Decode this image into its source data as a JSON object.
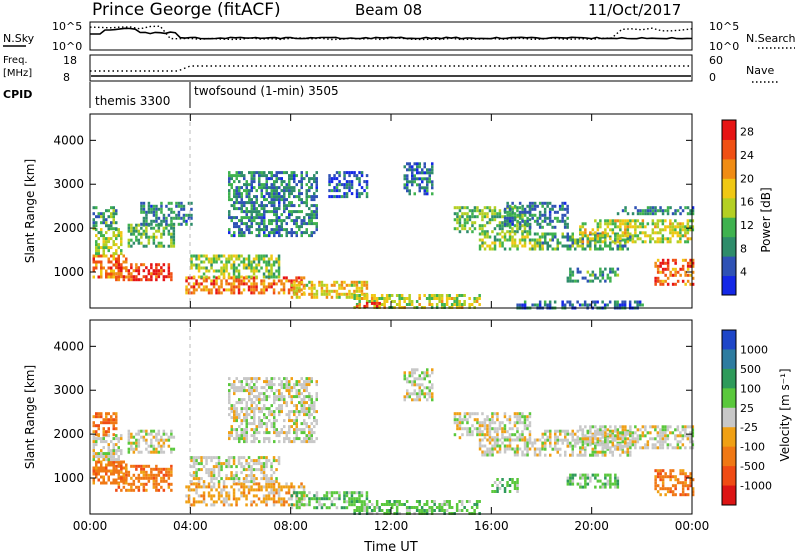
{
  "header": {
    "title": "Prince George (fitACF)",
    "beam": "Beam 08",
    "date": "11/Oct/2017"
  },
  "nsky_panel": {
    "left_label": "N.Sky",
    "right_label": "N.Search",
    "left_ticks": [
      "10^5",
      "10^0"
    ],
    "right_ticks": [
      "10^5",
      "10^0"
    ]
  },
  "freq_panel": {
    "left_label": "Freq.",
    "left_unit": "[MHz]",
    "right_label": "Nave",
    "left_ticks": [
      "18",
      "8"
    ],
    "right_ticks": [
      "60",
      "0"
    ]
  },
  "cpid_panel": {
    "label": "CPID",
    "segments": [
      {
        "name": "themis 3300",
        "start_h": 0.0
      },
      {
        "name": "twofsound (1-min) 3505",
        "start_h": 4.0
      }
    ]
  },
  "colors": {
    "power_scale": [
      "#1428e6",
      "#2f52b5",
      "#2e8c6a",
      "#3fb24f",
      "#b4cf23",
      "#f0c814",
      "#f08c14",
      "#f05014",
      "#e61414"
    ],
    "velocity_scale": [
      "#1e46c8",
      "#2e7ca0",
      "#2e9a5a",
      "#5ac83c",
      "#c8c8c8",
      "#f0a014",
      "#f07814",
      "#f04b14",
      "#dc1414"
    ]
  },
  "chart_data": [
    {
      "type": "heatmap",
      "name": "power",
      "ylabel": "Slant Range [km]",
      "xlabel": "",
      "x_ticks": [
        "00:00",
        "04:00",
        "08:00",
        "12:00",
        "16:00",
        "20:00",
        "00:00"
      ],
      "x_range_h": [
        0,
        24
      ],
      "y_ticks": [
        "1000",
        "2000",
        "3000",
        "4000"
      ],
      "ylim": [
        180,
        4600
      ],
      "colorbar": {
        "label": "Power [dB]",
        "ticks": [
          "4",
          "8",
          "12",
          "16",
          "20",
          "24",
          "28"
        ],
        "range": [
          0,
          30
        ]
      },
      "regions": [
        {
          "t0": 0.1,
          "t1": 1.4,
          "r0": 900,
          "r1": 1400,
          "v": 22
        },
        {
          "t0": 0.2,
          "t1": 1.2,
          "r0": 1400,
          "r1": 2000,
          "v": 14
        },
        {
          "t0": 0.1,
          "t1": 1.0,
          "r0": 2000,
          "r1": 2500,
          "v": 10
        },
        {
          "t0": 1.0,
          "t1": 3.2,
          "r0": 850,
          "r1": 1200,
          "v": 26
        },
        {
          "t0": 1.5,
          "t1": 3.3,
          "r0": 1600,
          "r1": 2100,
          "v": 12
        },
        {
          "t0": 2.0,
          "t1": 4.0,
          "r0": 2100,
          "r1": 2600,
          "v": 8
        },
        {
          "t0": 3.8,
          "t1": 8.5,
          "r0": 550,
          "r1": 900,
          "v": 24
        },
        {
          "t0": 4.0,
          "t1": 7.5,
          "r0": 900,
          "r1": 1400,
          "v": 14
        },
        {
          "t0": 5.5,
          "t1": 9.0,
          "r0": 1800,
          "r1": 3300,
          "v": 8
        },
        {
          "t0": 8.0,
          "t1": 11.0,
          "r0": 400,
          "r1": 800,
          "v": 18
        },
        {
          "t0": 9.5,
          "t1": 11.0,
          "r0": 2700,
          "r1": 3300,
          "v": 6
        },
        {
          "t0": 10.5,
          "t1": 15.5,
          "r0": 200,
          "r1": 500,
          "v": 16
        },
        {
          "t0": 10.5,
          "t1": 11.5,
          "r0": 200,
          "r1": 320,
          "v": 28
        },
        {
          "t0": 12.5,
          "t1": 13.6,
          "r0": 2800,
          "r1": 3500,
          "v": 7
        },
        {
          "t0": 14.5,
          "t1": 17.5,
          "r0": 1900,
          "r1": 2500,
          "v": 12
        },
        {
          "t0": 15.5,
          "t1": 18.0,
          "r0": 1500,
          "r1": 1900,
          "v": 14
        },
        {
          "t0": 16.5,
          "t1": 19.0,
          "r0": 2000,
          "r1": 2600,
          "v": 8
        },
        {
          "t0": 18.0,
          "t1": 21.5,
          "r0": 1500,
          "r1": 1900,
          "v": 10
        },
        {
          "t0": 19.5,
          "t1": 24.0,
          "r0": 1700,
          "r1": 2200,
          "v": 16
        },
        {
          "t0": 19.0,
          "t1": 21.0,
          "r0": 800,
          "r1": 1100,
          "v": 10
        },
        {
          "t0": 22.5,
          "t1": 24.0,
          "r0": 700,
          "r1": 1300,
          "v": 24
        },
        {
          "t0": 21.0,
          "t1": 24.0,
          "r0": 2300,
          "r1": 2500,
          "v": 8
        },
        {
          "t0": 17.0,
          "t1": 22.0,
          "r0": 200,
          "r1": 350,
          "v": 6
        }
      ]
    },
    {
      "type": "heatmap",
      "name": "velocity",
      "ylabel": "Slant Range [km]",
      "xlabel": "Time UT",
      "x_ticks": [
        "00:00",
        "04:00",
        "08:00",
        "12:00",
        "16:00",
        "20:00",
        "00:00"
      ],
      "x_range_h": [
        0,
        24
      ],
      "y_ticks": [
        "1000",
        "2000",
        "3000",
        "4000"
      ],
      "ylim": [
        180,
        4600
      ],
      "colorbar": {
        "label": "Velocity [m s⁻¹]",
        "ticks": [
          "1000",
          "500",
          "100",
          "25",
          "-25",
          "-100",
          "-500",
          "-1000"
        ]
      },
      "regions": [
        {
          "t0": 0.1,
          "t1": 1.4,
          "r0": 900,
          "r1": 1400,
          "c": 6
        },
        {
          "t0": 0.1,
          "t1": 1.2,
          "r0": 1400,
          "r1": 2000,
          "c": 4
        },
        {
          "t0": 0.1,
          "t1": 1.0,
          "r0": 2000,
          "r1": 2500,
          "c": 6
        },
        {
          "t0": 1.0,
          "t1": 3.2,
          "r0": 700,
          "r1": 1300,
          "c": 6
        },
        {
          "t0": 1.5,
          "t1": 3.3,
          "r0": 1600,
          "r1": 2100,
          "c": 4
        },
        {
          "t0": 3.8,
          "t1": 8.5,
          "r0": 400,
          "r1": 900,
          "c": 5
        },
        {
          "t0": 4.0,
          "t1": 7.5,
          "r0": 900,
          "r1": 1500,
          "c": 4
        },
        {
          "t0": 5.5,
          "t1": 9.0,
          "r0": 1800,
          "r1": 3300,
          "c": 4
        },
        {
          "t0": 8.0,
          "t1": 11.0,
          "r0": 300,
          "r1": 700,
          "c": 3
        },
        {
          "t0": 10.5,
          "t1": 15.5,
          "r0": 200,
          "r1": 500,
          "c": 3
        },
        {
          "t0": 12.5,
          "t1": 13.6,
          "r0": 2800,
          "r1": 3500,
          "c": 4
        },
        {
          "t0": 14.5,
          "t1": 17.5,
          "r0": 1900,
          "r1": 2500,
          "c": 4
        },
        {
          "t0": 15.5,
          "t1": 18.0,
          "r0": 1500,
          "r1": 1900,
          "c": 4
        },
        {
          "t0": 18.0,
          "t1": 21.5,
          "r0": 1500,
          "r1": 2100,
          "c": 4
        },
        {
          "t0": 19.5,
          "t1": 24.0,
          "r0": 1700,
          "r1": 2200,
          "c": 4
        },
        {
          "t0": 19.0,
          "t1": 21.0,
          "r0": 800,
          "r1": 1100,
          "c": 3
        },
        {
          "t0": 22.5,
          "t1": 24.0,
          "r0": 600,
          "r1": 1200,
          "c": 6
        },
        {
          "t0": 16.0,
          "t1": 17.0,
          "r0": 700,
          "r1": 1000,
          "c": 3
        }
      ]
    }
  ]
}
